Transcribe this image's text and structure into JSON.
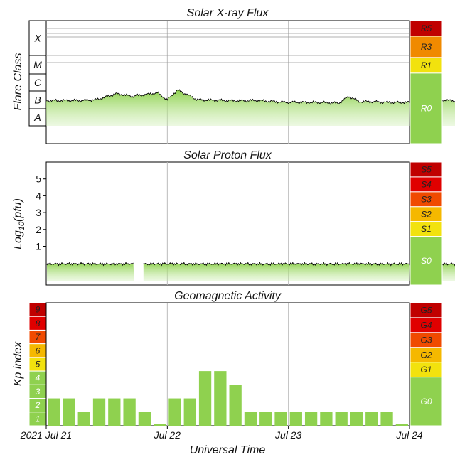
{
  "colors": {
    "green": "#8fd14f",
    "green_light": "#c9ecab",
    "yellow": "#f2e20e",
    "amber": "#f5b800",
    "orange": "#f08a00",
    "red_orange": "#f04a00",
    "red": "#e00000",
    "dark_red": "#c00000"
  },
  "chart_data": [
    {
      "type": "area",
      "title": "Solar X-ray Flux",
      "ylabel": "Flare Class",
      "y_ticks": [
        "X",
        "M",
        "C",
        "B",
        "A"
      ],
      "x_ticks": [
        "2021 Jul 21",
        "Jul 22",
        "Jul 23",
        "Jul 24"
      ],
      "xlim": [
        "2021-07-21",
        "2021-07-24"
      ],
      "series": [
        {
          "values_description": "B-class background with small C-class peaks",
          "points": [
            [
              "2021-07-21 00:00",
              0.45
            ],
            [
              "2021-07-21 06:00",
              0.45
            ],
            [
              "2021-07-21 10:00",
              0.5
            ],
            [
              "2021-07-21 14:00",
              0.85
            ],
            [
              "2021-07-21 17:00",
              0.7
            ],
            [
              "2021-07-21 20:00",
              0.8
            ],
            [
              "2021-07-21 22:00",
              0.9
            ],
            [
              "2021-07-22 00:00",
              0.5
            ],
            [
              "2021-07-22 02:00",
              1.05
            ],
            [
              "2021-07-22 06:00",
              0.5
            ],
            [
              "2021-07-22 12:00",
              0.45
            ],
            [
              "2021-07-22 18:00",
              0.45
            ],
            [
              "2021-07-23 00:00",
              0.35
            ],
            [
              "2021-07-23 06:00",
              0.35
            ],
            [
              "2021-07-23 10:00",
              0.3
            ],
            [
              "2021-07-23 12:00",
              0.7
            ],
            [
              "2021-07-23 14:00",
              0.4
            ],
            [
              "2021-07-23 20:00",
              0.35
            ],
            [
              "2021-07-24 00:00",
              0.35
            ],
            [
              "2021-07-24 06:00",
              0.5
            ],
            [
              "2021-07-24 10:00",
              0.4
            ]
          ]
        }
      ],
      "scale": [
        {
          "label": "R5",
          "color": "dark_red"
        },
        {
          "label": "R3",
          "color": "orange"
        },
        {
          "label": "R1",
          "color": "yellow"
        },
        {
          "label": "R0",
          "color": "green"
        }
      ]
    },
    {
      "type": "area",
      "title": "Solar Proton Flux",
      "ylabel": "Log10(pfu)",
      "ylabel_parts": {
        "base": "Log",
        "sub": "10",
        "rest": "(pfu)"
      },
      "y_ticks": [
        5,
        4,
        3,
        2,
        1
      ],
      "ylim": [
        -1.3,
        6
      ],
      "x_ticks": [
        "2021 Jul 21",
        "Jul 22",
        "Jul 23",
        "Jul 24"
      ],
      "series": [
        {
          "value": -0.05,
          "gap": [
            "2021-07-21 18:00",
            "2021-07-21 19:00"
          ]
        }
      ],
      "scale": [
        {
          "label": "S5",
          "color": "dark_red"
        },
        {
          "label": "S4",
          "color": "red"
        },
        {
          "label": "S3",
          "color": "red_orange"
        },
        {
          "label": "S2",
          "color": "amber"
        },
        {
          "label": "S1",
          "color": "yellow"
        },
        {
          "label": "S0",
          "color": "green"
        }
      ]
    },
    {
      "type": "bar",
      "title": "Geomagnetic Activity",
      "ylabel": "Kp index",
      "ylim": [
        0,
        9
      ],
      "y_ticks": [
        9,
        8,
        7,
        6,
        5,
        4,
        3,
        2,
        1
      ],
      "x_ticks": [
        "2021 Jul 21",
        "Jul 22",
        "Jul 23",
        "Jul 24"
      ],
      "xlabel": "Universal Time",
      "values": [
        2,
        2,
        1,
        2,
        2,
        2,
        1,
        0,
        2,
        2,
        4,
        4,
        3,
        1,
        1,
        1,
        1,
        1,
        1,
        1,
        1,
        1,
        1,
        0
      ],
      "scale": [
        {
          "label": "G5",
          "color": "dark_red"
        },
        {
          "label": "G4",
          "color": "red"
        },
        {
          "label": "G3",
          "color": "red_orange"
        },
        {
          "label": "G2",
          "color": "amber"
        },
        {
          "label": "G1",
          "color": "yellow"
        },
        {
          "label": "G0",
          "color": "green"
        }
      ]
    }
  ]
}
